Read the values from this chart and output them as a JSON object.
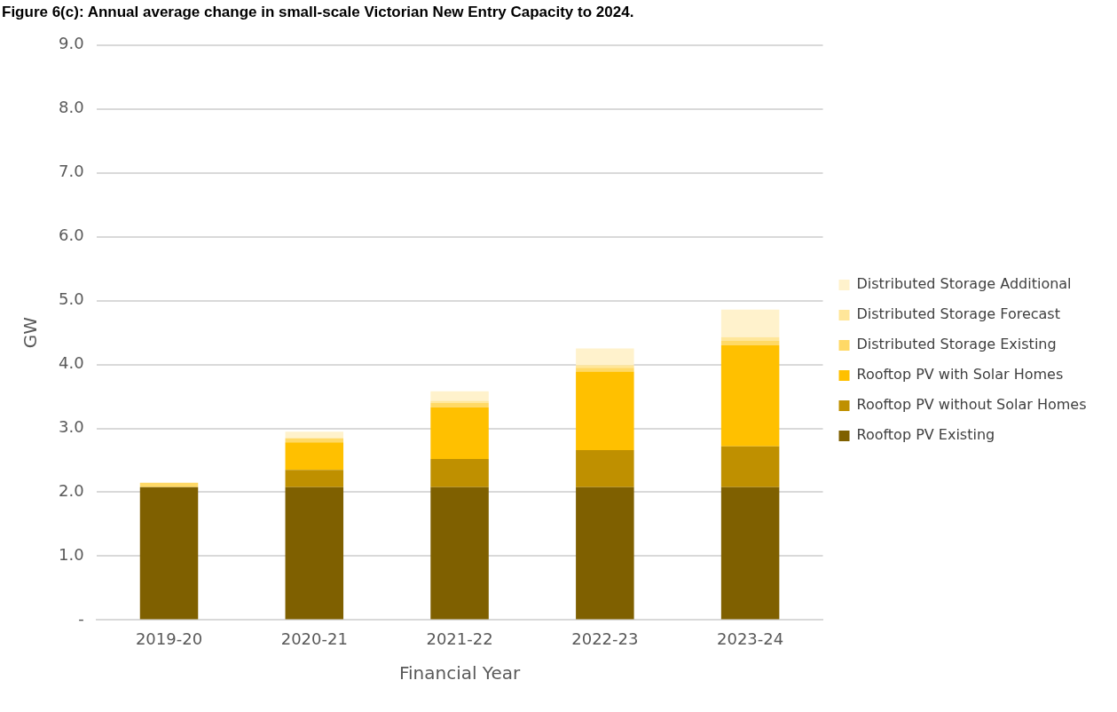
{
  "chart_data": {
    "type": "bar",
    "title": "Figure 6(c): Annual average change in small-scale Victorian New Entry Capacity to 2024.",
    "xlabel": "Financial Year",
    "ylabel": "GW",
    "categories": [
      "2019-20",
      "2020-21",
      "2021-22",
      "2022-23",
      "2023-24"
    ],
    "stacked": true,
    "series": [
      {
        "name": "Rooftop PV Existing",
        "color": "#7f6000",
        "values": [
          2.08,
          2.08,
          2.08,
          2.08,
          2.08
        ]
      },
      {
        "name": "Rooftop PV without Solar Homes",
        "color": "#bf9000",
        "values": [
          0,
          0.27,
          0.44,
          0.58,
          0.64
        ]
      },
      {
        "name": "Rooftop PV with Solar Homes",
        "color": "#ffc000",
        "values": [
          0,
          0.43,
          0.81,
          1.23,
          1.58
        ]
      },
      {
        "name": "Distributed Storage Existing",
        "color": "#ffd966",
        "values": [
          0.07,
          0.06,
          0.07,
          0.06,
          0.07
        ]
      },
      {
        "name": "Distributed Storage Forecast",
        "color": "#ffe699",
        "values": [
          0,
          0.01,
          0.03,
          0.04,
          0.06
        ]
      },
      {
        "name": "Distributed Storage Additional",
        "color": "#fff2cc",
        "values": [
          0,
          0.1,
          0.15,
          0.26,
          0.43
        ]
      }
    ],
    "ylim": [
      0,
      9
    ],
    "yticks": [
      {
        "value": 0,
        "label": "-"
      },
      {
        "value": 1,
        "label": "1.0"
      },
      {
        "value": 2,
        "label": "2.0"
      },
      {
        "value": 3,
        "label": "3.0"
      },
      {
        "value": 4,
        "label": "4.0"
      },
      {
        "value": 5,
        "label": "5.0"
      },
      {
        "value": 6,
        "label": "6.0"
      },
      {
        "value": 7,
        "label": "7.0"
      },
      {
        "value": 8,
        "label": "8.0"
      },
      {
        "value": 9,
        "label": "9.0"
      }
    ],
    "grid": "y",
    "legend": "right"
  }
}
